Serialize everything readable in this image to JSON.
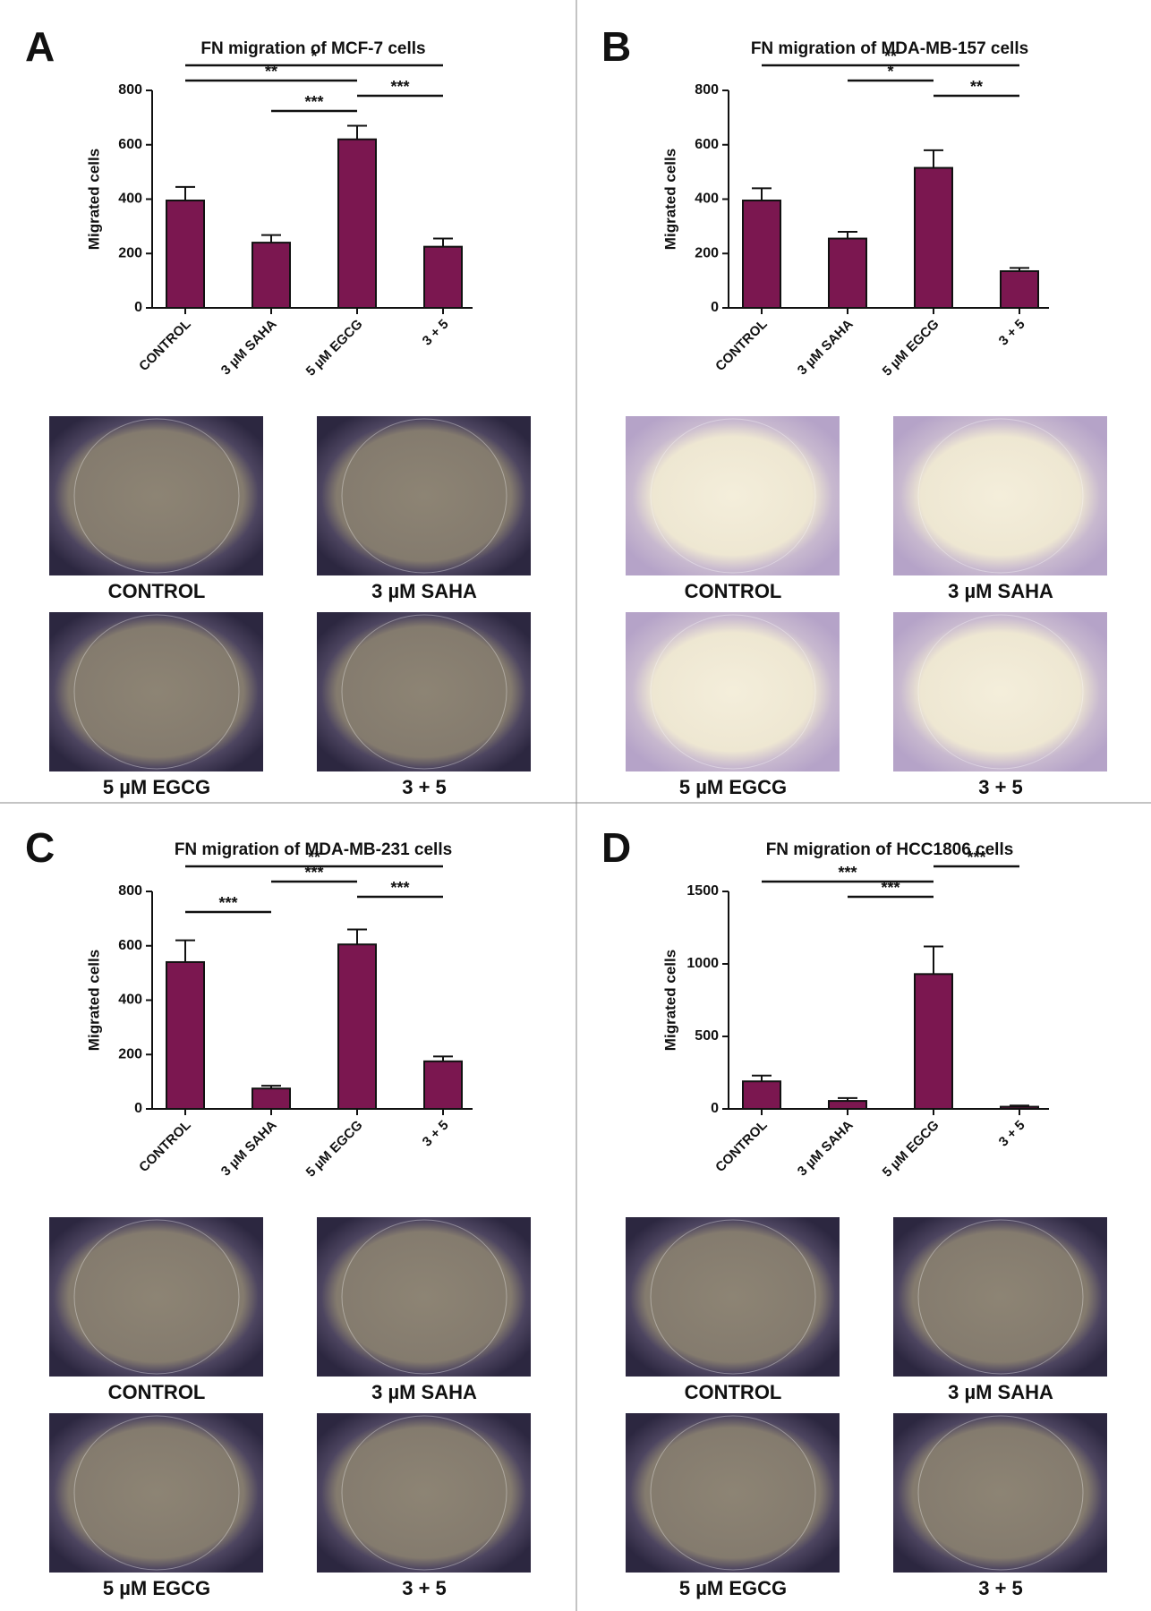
{
  "chart_data": [
    {
      "type": "bar",
      "panel": "A",
      "title": "FN migration of MCF-7 cells",
      "y_label": "Migrated cells",
      "color": "#7b1750",
      "categories": [
        "CONTROL",
        "3 µM SAHA",
        "5 µM EGCG",
        "3 + 5"
      ],
      "values": [
        395,
        240,
        620,
        225
      ],
      "errors": [
        50,
        28,
        50,
        30
      ],
      "ylim": [
        0,
        800
      ],
      "yticks": [
        0,
        200,
        400,
        600,
        800
      ],
      "significance": [
        {
          "from": 0,
          "to": 3,
          "label": "*"
        },
        {
          "from": 0,
          "to": 2,
          "label": "**"
        },
        {
          "from": 2,
          "to": 3,
          "label": "***"
        },
        {
          "from": 1,
          "to": 2,
          "label": "***"
        }
      ],
      "image_captions": [
        "CONTROL",
        "3 µM SAHA",
        "5 µM EGCG",
        "3 + 5"
      ]
    },
    {
      "type": "bar",
      "panel": "B",
      "title": "FN migration of MDA-MB-157 cells",
      "y_label": "Migrated cells",
      "color": "#7b1750",
      "categories": [
        "CONTROL",
        "3 µM SAHA",
        "5 µM EGCG",
        "3 + 5"
      ],
      "values": [
        395,
        255,
        515,
        135
      ],
      "errors": [
        45,
        25,
        65,
        12
      ],
      "ylim": [
        0,
        800
      ],
      "yticks": [
        0,
        200,
        400,
        600,
        800
      ],
      "significance": [
        {
          "from": 0,
          "to": 3,
          "label": "**"
        },
        {
          "from": 1,
          "to": 2,
          "label": "*"
        },
        {
          "from": 2,
          "to": 3,
          "label": "**"
        }
      ],
      "image_captions": [
        "CONTROL",
        "3 µM SAHA",
        "5 µM EGCG",
        "3 + 5"
      ]
    },
    {
      "type": "bar",
      "panel": "C",
      "title": "FN migration of MDA-MB-231 cells",
      "y_label": "Migrated cells",
      "color": "#7b1750",
      "categories": [
        "CONTROL",
        "3 µM SAHA",
        "5 µM EGCG",
        "3 + 5"
      ],
      "values": [
        540,
        75,
        605,
        175
      ],
      "errors": [
        80,
        10,
        55,
        18
      ],
      "ylim": [
        0,
        800
      ],
      "yticks": [
        0,
        200,
        400,
        600,
        800
      ],
      "significance": [
        {
          "from": 0,
          "to": 3,
          "label": "**"
        },
        {
          "from": 1,
          "to": 2,
          "label": "***"
        },
        {
          "from": 2,
          "to": 3,
          "label": "***"
        },
        {
          "from": 0,
          "to": 1,
          "label": "***"
        }
      ],
      "image_captions": [
        "CONTROL",
        "3 µM SAHA",
        "5 µM EGCG",
        "3 + 5"
      ]
    },
    {
      "type": "bar",
      "panel": "D",
      "title": "FN migration of HCC1806 cells",
      "y_label": "Migrated cells",
      "color": "#7b1750",
      "categories": [
        "CONTROL",
        "3 µM SAHA",
        "5 µM EGCG",
        "3 + 5"
      ],
      "values": [
        190,
        55,
        930,
        15
      ],
      "errors": [
        40,
        20,
        190,
        8
      ],
      "ylim": [
        0,
        1500
      ],
      "yticks": [
        0,
        500,
        1000,
        1500
      ],
      "significance": [
        {
          "from": 2,
          "to": 3,
          "label": "***"
        },
        {
          "from": 0,
          "to": 2,
          "label": "***"
        },
        {
          "from": 1,
          "to": 2,
          "label": "***"
        }
      ],
      "image_captions": [
        "CONTROL",
        "3 µM SAHA",
        "5 µM EGCG",
        "3 + 5"
      ]
    }
  ]
}
